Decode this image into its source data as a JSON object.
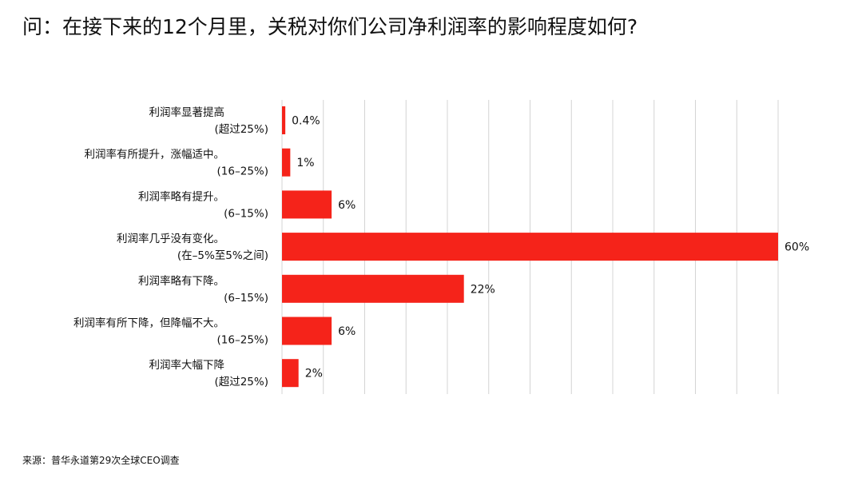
{
  "title": "问：在接下来的12个月里，关税对你们公司净利润率的影响程度如何?",
  "source": "来源：普华永道第29次全球CEO调查",
  "colors": {
    "bar": "#f5231a",
    "grid": "#d4d4d4",
    "text": "#111111"
  },
  "chart_data": {
    "type": "bar",
    "orientation": "horizontal",
    "title": "问：在接下来的12个月里，关税对你们公司净利润率的影响程度如何?",
    "categories": [
      "利润率显著提高 (超过25%)",
      "利润率有所提升，涨幅适中。 (16–25%)",
      "利润率略有提升。 (6–15%)",
      "利润率几乎没有变化。 (在–5%至5%之间)",
      "利润率略有下降。 (6–15%)",
      "利润率有所下降，但降幅不大。 (16–25%)",
      "利润率大幅下降 (超过25%)"
    ],
    "category_lines": [
      [
        "利润率显著提高",
        "(超过25%)"
      ],
      [
        "利润率有所提升，涨幅适中。",
        "(16–25%)"
      ],
      [
        "利润率略有提升。",
        "(6–15%)"
      ],
      [
        "利润率几乎没有变化。",
        "(在–5%至5%之间)"
      ],
      [
        "利润率略有下降。",
        "(6–15%)"
      ],
      [
        "利润率有所下降，但降幅不大。",
        "(16–25%)"
      ],
      [
        "利润率大幅下降",
        "(超过25%)"
      ]
    ],
    "values": [
      0.4,
      1,
      6,
      60,
      22,
      6,
      2
    ],
    "value_labels": [
      "0.4%",
      "1%",
      "6%",
      "60%",
      "22%",
      "6%",
      "2%"
    ],
    "xlim": [
      0,
      60
    ],
    "grid_step": 5,
    "grid": true,
    "xlabel": "",
    "ylabel": ""
  }
}
